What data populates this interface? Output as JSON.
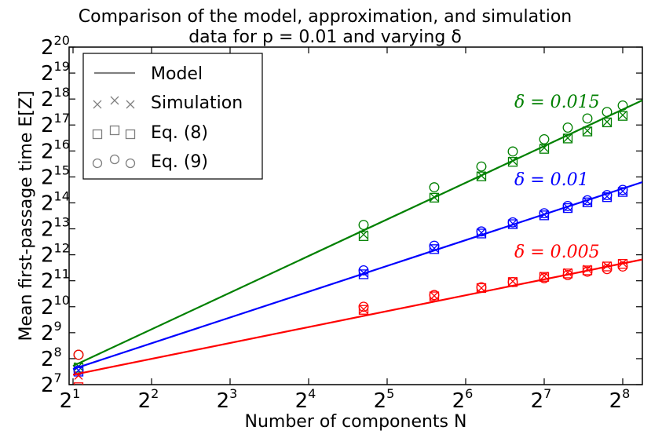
{
  "chart_data": {
    "type": "line",
    "title_lines": [
      "Comparison of the model, approximation, and simulation",
      "data for p = 0.01 and varying δ"
    ],
    "xlabel": "Number of components N",
    "ylabel": "Mean first-passage time E[Z]",
    "x_scale": "log2",
    "y_scale": "log2",
    "x_exponent_range": [
      0.95,
      8.25
    ],
    "y_exponent_range": [
      7,
      20
    ],
    "x_ticks": [
      {
        "base": "2",
        "exp": "1",
        "e": 1
      },
      {
        "base": "2",
        "exp": "2",
        "e": 2
      },
      {
        "base": "2",
        "exp": "3",
        "e": 3
      },
      {
        "base": "2",
        "exp": "4",
        "e": 4
      },
      {
        "base": "2",
        "exp": "5",
        "e": 5
      },
      {
        "base": "2",
        "exp": "6",
        "e": 6
      },
      {
        "base": "2",
        "exp": "7",
        "e": 7
      },
      {
        "base": "2",
        "exp": "8",
        "e": 8
      }
    ],
    "y_ticks": [
      {
        "base": "2",
        "exp": "7",
        "e": 7
      },
      {
        "base": "2",
        "exp": "8",
        "e": 8
      },
      {
        "base": "2",
        "exp": "9",
        "e": 9
      },
      {
        "base": "2",
        "exp": "10",
        "e": 10
      },
      {
        "base": "2",
        "exp": "11",
        "e": 11
      },
      {
        "base": "2",
        "exp": "12",
        "e": 12
      },
      {
        "base": "2",
        "exp": "13",
        "e": 13
      },
      {
        "base": "2",
        "exp": "14",
        "e": 14
      },
      {
        "base": "2",
        "exp": "15",
        "e": 15
      },
      {
        "base": "2",
        "exp": "16",
        "e": 16
      },
      {
        "base": "2",
        "exp": "17",
        "e": 17
      },
      {
        "base": "2",
        "exp": "18",
        "e": 18
      },
      {
        "base": "2",
        "exp": "19",
        "e": 19
      },
      {
        "base": "2",
        "exp": "20",
        "e": 20
      }
    ],
    "legend": {
      "placement": "top-left",
      "entries": [
        {
          "label": "Model",
          "marker": "line"
        },
        {
          "label": "Simulation",
          "marker": "x"
        },
        {
          "label": "Eq. (8)",
          "marker": "square"
        },
        {
          "label": "Eq. (9)",
          "marker": "circle"
        }
      ],
      "color": "#808080"
    },
    "series": [
      {
        "label": "δ = 0.015",
        "delta": "0.015",
        "color": "#008000",
        "x_log2": [
          1.07,
          4.7,
          5.6,
          6.2,
          6.6,
          7.0,
          7.3,
          7.55,
          7.8,
          8.0
        ],
        "model_y_log2": [
          7.7,
          12.85,
          14.25,
          15.1,
          15.65,
          16.2,
          16.55,
          16.85,
          17.2,
          17.45
        ],
        "simulation_y_log2": [
          7.7,
          12.78,
          14.22,
          15.05,
          15.62,
          16.12,
          16.5,
          16.78,
          17.12,
          17.38
        ],
        "eq8_y_log2": [
          7.65,
          12.72,
          14.2,
          15.02,
          15.58,
          16.08,
          16.48,
          16.75,
          17.1,
          17.35
        ],
        "eq9_y_log2": [
          8.15,
          13.15,
          14.6,
          15.4,
          15.98,
          16.45,
          16.9,
          17.25,
          17.5,
          17.75
        ],
        "fit_line_log2": [
          [
            1.0,
            7.72
          ],
          [
            8.25,
            17.95
          ]
        ]
      },
      {
        "label": "δ = 0.01",
        "delta": "0.01",
        "color": "#0000ff",
        "x_log2": [
          1.07,
          4.7,
          5.6,
          6.2,
          6.6,
          7.0,
          7.3,
          7.55,
          7.8,
          8.0
        ],
        "model_y_log2": [
          7.6,
          11.35,
          12.3,
          12.85,
          13.25,
          13.6,
          13.85,
          14.1,
          14.3,
          14.5
        ],
        "simulation_y_log2": [
          7.55,
          11.3,
          12.25,
          12.85,
          13.2,
          13.55,
          13.82,
          14.05,
          14.25,
          14.45
        ],
        "eq8_y_log2": [
          7.5,
          11.25,
          12.22,
          12.82,
          13.18,
          13.52,
          13.8,
          14.02,
          14.22,
          14.42
        ],
        "eq9_y_log2": [
          7.55,
          11.4,
          12.35,
          12.9,
          13.25,
          13.6,
          13.88,
          14.1,
          14.3,
          14.5
        ],
        "fit_line_log2": [
          [
            1.0,
            7.6
          ],
          [
            8.25,
            14.8
          ]
        ]
      },
      {
        "label": "δ = 0.005",
        "delta": "0.005",
        "color": "#ff0000",
        "x_log2": [
          1.07,
          4.7,
          5.6,
          6.2,
          6.6,
          7.0,
          7.3,
          7.55,
          7.8,
          8.0
        ],
        "model_y_log2": [
          7.35,
          9.95,
          10.45,
          10.75,
          10.95,
          11.15,
          11.3,
          11.45,
          11.55,
          11.65
        ],
        "simulation_y_log2": [
          7.35,
          9.9,
          10.42,
          10.72,
          10.98,
          11.18,
          11.32,
          11.45,
          11.58,
          11.68
        ],
        "eq8_y_log2": [
          6.9,
          9.88,
          10.4,
          10.72,
          10.95,
          11.15,
          11.28,
          11.4,
          11.55,
          11.65
        ],
        "eq9_y_log2": [
          8.15,
          10.0,
          10.45,
          10.75,
          10.95,
          11.1,
          11.22,
          11.35,
          11.45,
          11.55
        ],
        "fit_line_log2": [
          [
            1.0,
            7.38
          ],
          [
            8.25,
            11.82
          ]
        ]
      }
    ],
    "grid": false
  }
}
